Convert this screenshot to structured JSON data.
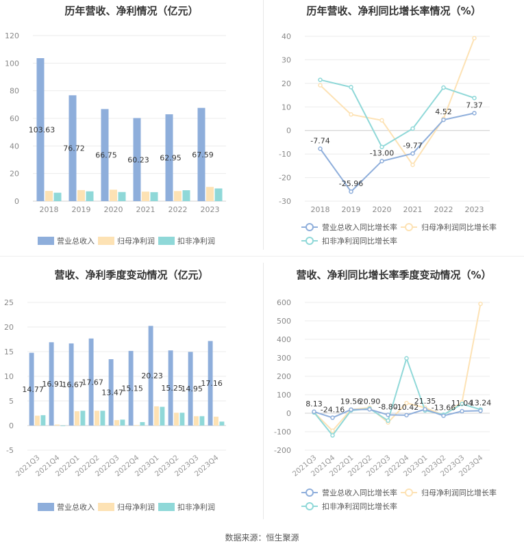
{
  "source_text": "数据来源：恒生聚源",
  "colors": {
    "revenue": "#8eaedb",
    "parent": "#fde2b4",
    "deducted": "#8fd8d8"
  },
  "chart_data": [
    {
      "id": "annual_bar",
      "type": "bar",
      "title": "历年营收、净利情况（亿元）",
      "categories": [
        "2018",
        "2019",
        "2020",
        "2021",
        "2022",
        "2023"
      ],
      "series": [
        {
          "name": "营业总收入",
          "values": [
            103.63,
            76.72,
            66.75,
            60.23,
            62.95,
            67.59
          ]
        },
        {
          "name": "归母净利润",
          "values": [
            7.4,
            8.0,
            8.3,
            6.9,
            7.3,
            10.3
          ]
        },
        {
          "name": "扣非净利润",
          "values": [
            6.1,
            7.1,
            6.6,
            6.5,
            7.9,
            9.2
          ]
        }
      ],
      "labels": [
        "103.63",
        "76.72",
        "66.75",
        "60.23",
        "62.95",
        "67.59"
      ],
      "ylim": [
        0,
        120
      ],
      "yticks": [
        "0",
        "20",
        "40",
        "60",
        "80",
        "100",
        "120"
      ],
      "grid": true,
      "legend": "bottom"
    },
    {
      "id": "annual_line",
      "type": "line",
      "title": "历年营收、净利同比增长率情况（%）",
      "categories": [
        "2018",
        "2019",
        "2020",
        "2021",
        "2022",
        "2023"
      ],
      "series": [
        {
          "name": "营业总收入同比增长率",
          "values": [
            -7.74,
            -25.96,
            -13.0,
            -9.77,
            4.52,
            7.37
          ]
        },
        {
          "name": "归母净利润同比增长率",
          "values": [
            19.2,
            6.8,
            4.3,
            -14.6,
            5.0,
            39.2
          ]
        },
        {
          "name": "扣非净利润同比增长率",
          "values": [
            21.5,
            18.4,
            -7.0,
            0.8,
            18.2,
            13.8
          ]
        }
      ],
      "labels": [
        "-7.74",
        "-25.96",
        "-13.00",
        "-9.77",
        "4.52",
        "7.37"
      ],
      "ylim": [
        -30,
        40
      ],
      "yticks": [
        "-30",
        "-20",
        "-10",
        "0",
        "10",
        "20",
        "30",
        "40"
      ],
      "grid": true,
      "legend": "bottom"
    },
    {
      "id": "quarter_bar",
      "type": "bar",
      "title": "营收、净利季度变动情况（亿元）",
      "categories": [
        "2021Q3",
        "2021Q4",
        "2022Q1",
        "2022Q2",
        "2022Q3",
        "2022Q4",
        "2023Q1",
        "2023Q2",
        "2023Q3",
        "2023Q4"
      ],
      "series": [
        {
          "name": "营业总收入",
          "values": [
            14.77,
            16.91,
            16.67,
            17.67,
            13.47,
            15.15,
            20.23,
            15.25,
            14.95,
            17.16
          ]
        },
        {
          "name": "归母净利润",
          "values": [
            2.0,
            0.2,
            2.9,
            3.0,
            1.1,
            0.1,
            3.9,
            2.6,
            1.9,
            1.8
          ]
        },
        {
          "name": "扣非净利润",
          "values": [
            2.1,
            -0.1,
            3.0,
            3.0,
            1.2,
            0.7,
            3.8,
            2.6,
            1.9,
            0.8
          ]
        }
      ],
      "labels": [
        "14.77",
        "16.91",
        "16.67",
        "17.67",
        "13.47",
        "15.15",
        "20.23",
        "15.25",
        "14.95",
        "17.16"
      ],
      "ylim": [
        -5,
        25
      ],
      "yticks": [
        "-5",
        "0",
        "5",
        "10",
        "15",
        "20",
        "25"
      ],
      "grid": true,
      "legend": "bottom"
    },
    {
      "id": "quarter_line",
      "type": "line",
      "title": "营收、净利同比增长率季度变动情况（%）",
      "categories": [
        "2021Q3",
        "2021Q4",
        "2022Q1",
        "2022Q2",
        "2022Q3",
        "2022Q4",
        "2023Q1",
        "2023Q2",
        "2023Q3",
        "2023Q4"
      ],
      "series": [
        {
          "name": "营业总收入同比增长率",
          "values": [
            8.13,
            -24.16,
            19.56,
            20.9,
            -8.8,
            -10.42,
            21.35,
            -13.66,
            11.04,
            13.24
          ]
        },
        {
          "name": "归母净利润同比增长率",
          "values": [
            5.0,
            -95.0,
            20.0,
            30.0,
            -50.0,
            55.0,
            30.0,
            -10.0,
            60.0,
            592.0
          ]
        },
        {
          "name": "扣非净利润同比增长率",
          "values": [
            4.0,
            -120.0,
            15.0,
            25.0,
            -40.0,
            297.0,
            15.0,
            -8.0,
            50.0,
            20.0
          ]
        }
      ],
      "labels": [
        "8.13",
        "-24.16",
        "19.56",
        "20.90",
        "-8.80",
        "-10.42",
        "21.35",
        "-13.66",
        "11.04",
        "13.24"
      ],
      "ylim": [
        -200,
        600
      ],
      "yticks": [
        "-200",
        "-100",
        "0",
        "100",
        "200",
        "300",
        "400",
        "500",
        "600"
      ],
      "grid": true,
      "legend": "bottom"
    }
  ]
}
